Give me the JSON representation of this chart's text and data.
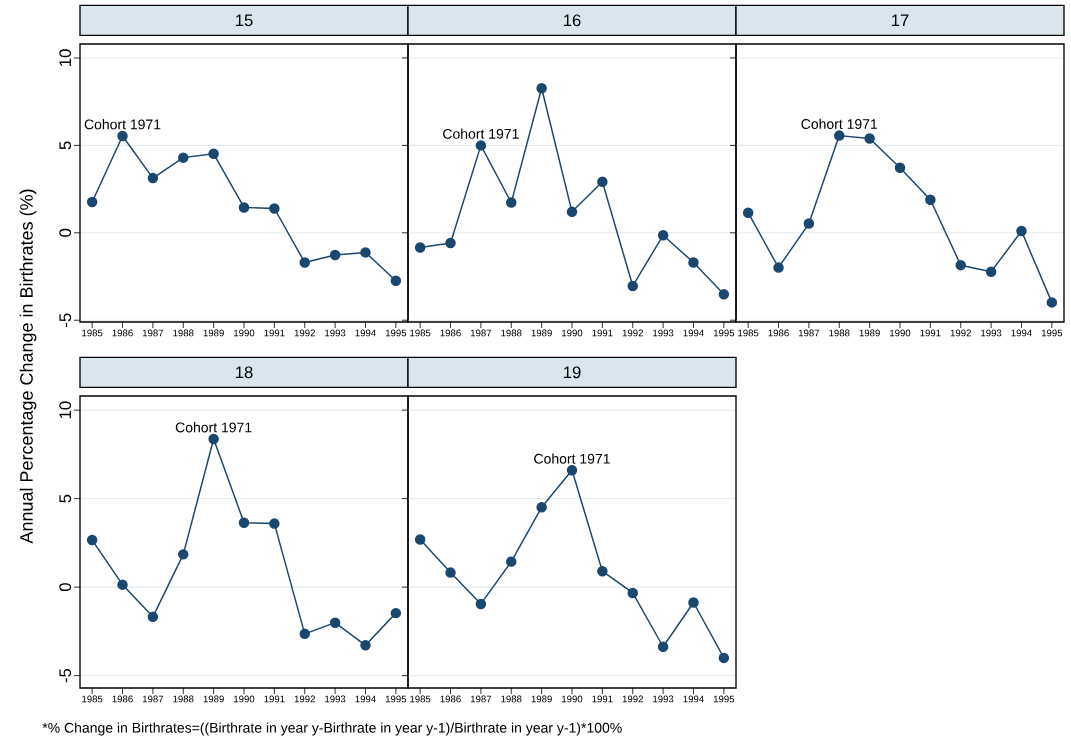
{
  "chart_data": [
    {
      "type": "line",
      "title": "15",
      "ylabel": "Annual Percentage Change in Birthrates (%)",
      "x": [
        1985,
        1986,
        1987,
        1988,
        1989,
        1990,
        1991,
        1992,
        1993,
        1994,
        1995
      ],
      "xlim": [
        1984.6,
        1995.4
      ],
      "xticks": [
        1985,
        1986,
        1987,
        1988,
        1989,
        1990,
        1991,
        1992,
        1993,
        1994,
        1995
      ],
      "ylim": [
        -5.1,
        10.8
      ],
      "yticks": [
        -5,
        0,
        5,
        10
      ],
      "grid": "y",
      "marker": "circle",
      "series": [
        {
          "color": "#1a476f",
          "values": [
            1.76,
            5.54,
            3.13,
            4.3,
            4.52,
            1.45,
            1.39,
            -1.7,
            -1.27,
            -1.12,
            -2.74
          ]
        }
      ],
      "annotations": [
        {
          "text": "Cohort 1971",
          "x": 1986,
          "y": 5.54
        }
      ]
    },
    {
      "type": "line",
      "title": "16",
      "x": [
        1985,
        1986,
        1987,
        1988,
        1989,
        1990,
        1991,
        1992,
        1993,
        1994,
        1995
      ],
      "xlim": [
        1984.6,
        1995.4
      ],
      "xticks": [
        1985,
        1986,
        1987,
        1988,
        1989,
        1990,
        1991,
        1992,
        1993,
        1994,
        1995
      ],
      "ylim": [
        -5.1,
        10.8
      ],
      "yticks": [
        -5,
        0,
        5,
        10
      ],
      "grid": "y",
      "marker": "circle",
      "tick_labels": "x",
      "series": [
        {
          "color": "#1a476f",
          "values": [
            -0.84,
            -0.58,
            5.0,
            1.73,
            8.27,
            1.2,
            2.92,
            -3.04,
            -0.14,
            -1.7,
            -3.52
          ]
        }
      ],
      "annotations": [
        {
          "text": "Cohort 1971",
          "x": 1987,
          "y": 5.0
        }
      ]
    },
    {
      "type": "line",
      "title": "17",
      "x": [
        1985,
        1986,
        1987,
        1988,
        1989,
        1990,
        1991,
        1992,
        1993,
        1994,
        1995
      ],
      "xlim": [
        1984.6,
        1995.4
      ],
      "xticks": [
        1985,
        1986,
        1987,
        1988,
        1989,
        1990,
        1991,
        1992,
        1993,
        1994,
        1995
      ],
      "ylim": [
        -5.1,
        10.8
      ],
      "yticks": [
        -5,
        0,
        5,
        10
      ],
      "grid": "y",
      "marker": "circle",
      "tick_labels": "x",
      "series": [
        {
          "color": "#1a476f",
          "values": [
            1.15,
            -1.99,
            0.53,
            5.56,
            5.39,
            3.72,
            1.89,
            -1.85,
            -2.23,
            0.1,
            -3.98
          ]
        }
      ],
      "annotations": [
        {
          "text": "Cohort 1971",
          "x": 1988,
          "y": 5.56
        }
      ]
    },
    {
      "type": "line",
      "title": "18",
      "x": [
        1985,
        1986,
        1987,
        1988,
        1989,
        1990,
        1991,
        1992,
        1993,
        1994,
        1995
      ],
      "xlim": [
        1984.6,
        1995.4
      ],
      "xticks": [
        1985,
        1986,
        1987,
        1988,
        1989,
        1990,
        1991,
        1992,
        1993,
        1994,
        1995
      ],
      "ylim": [
        -5.7,
        10.8
      ],
      "yticks": [
        -5,
        0,
        5,
        10
      ],
      "grid": "y",
      "marker": "circle",
      "series": [
        {
          "color": "#1a476f",
          "values": [
            2.66,
            0.14,
            -1.68,
            1.85,
            8.37,
            3.64,
            3.59,
            -2.64,
            -2.01,
            -3.29,
            -1.47
          ]
        }
      ],
      "annotations": [
        {
          "text": "Cohort 1971",
          "x": 1989,
          "y": 8.37
        },
        "*% Change in Birthrates=((Birthrate in year y-Birthrate in year y-1)/Birthrate in year y-1)*100%"
      ]
    },
    {
      "type": "line",
      "title": "19",
      "x": [
        1985,
        1986,
        1987,
        1988,
        1989,
        1990,
        1991,
        1992,
        1993,
        1994,
        1995
      ],
      "xlim": [
        1984.6,
        1995.4
      ],
      "xticks": [
        1985,
        1986,
        1987,
        1988,
        1989,
        1990,
        1991,
        1992,
        1993,
        1994,
        1995
      ],
      "ylim": [
        -5.7,
        10.8
      ],
      "yticks": [
        -5,
        0,
        5,
        10
      ],
      "grid": "y",
      "marker": "circle",
      "tick_labels": "x",
      "series": [
        {
          "color": "#1a476f",
          "values": [
            2.69,
            0.82,
            -0.95,
            1.44,
            4.51,
            6.6,
            0.9,
            -0.33,
            -3.37,
            -0.87,
            -4.0
          ]
        }
      ],
      "annotations": [
        {
          "text": "Cohort 1971",
          "x": 1990,
          "y": 6.6
        }
      ]
    }
  ]
}
